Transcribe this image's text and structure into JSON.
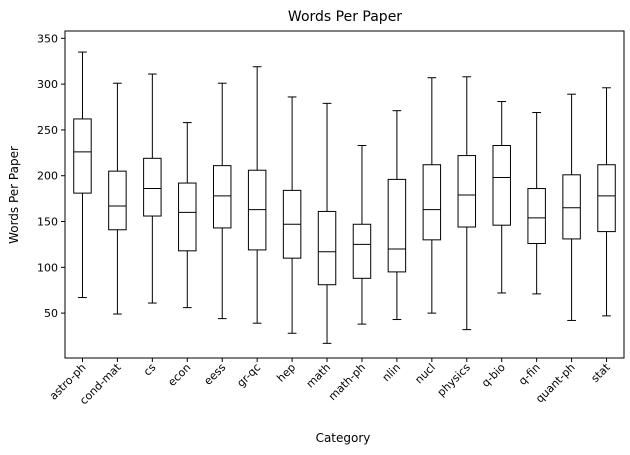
{
  "chart_data": {
    "type": "box",
    "title": "Words Per Paper",
    "xlabel": "Category",
    "ylabel": "Words Per Paper",
    "ylim": [
      1,
      358
    ],
    "yticks": [
      50,
      100,
      150,
      200,
      250,
      300,
      350
    ],
    "grid": false,
    "legend": "none",
    "categories": [
      "astro-ph",
      "cond-mat",
      "cs",
      "econ",
      "eess",
      "gr-qc",
      "hep",
      "math",
      "math-ph",
      "nlin",
      "nucl",
      "physics",
      "q-bio",
      "q-fin",
      "quant-ph",
      "stat"
    ],
    "series": [
      {
        "whisker_low": [
          67,
          49,
          61,
          56,
          44,
          39,
          28,
          17,
          38,
          43,
          50,
          32,
          72,
          71,
          42,
          47
        ],
        "q1": [
          181,
          141,
          156,
          118,
          143,
          119,
          110,
          81,
          88,
          95,
          130,
          144,
          146,
          126,
          131,
          139
        ],
        "median": [
          226,
          167,
          186,
          160,
          178,
          163,
          147,
          117,
          125,
          120,
          163,
          179,
          198,
          154,
          165,
          178
        ],
        "q3": [
          262,
          205,
          219,
          192,
          211,
          206,
          184,
          161,
          147,
          196,
          212,
          222,
          233,
          186,
          201,
          212
        ],
        "whisker_high": [
          335,
          301,
          311,
          258,
          301,
          319,
          286,
          279,
          233,
          271,
          307,
          308,
          281,
          269,
          289,
          296
        ]
      }
    ],
    "colors": {
      "box": "#000000",
      "median": "#000000",
      "whisker": "#000000",
      "background": "#ffffff"
    }
  }
}
